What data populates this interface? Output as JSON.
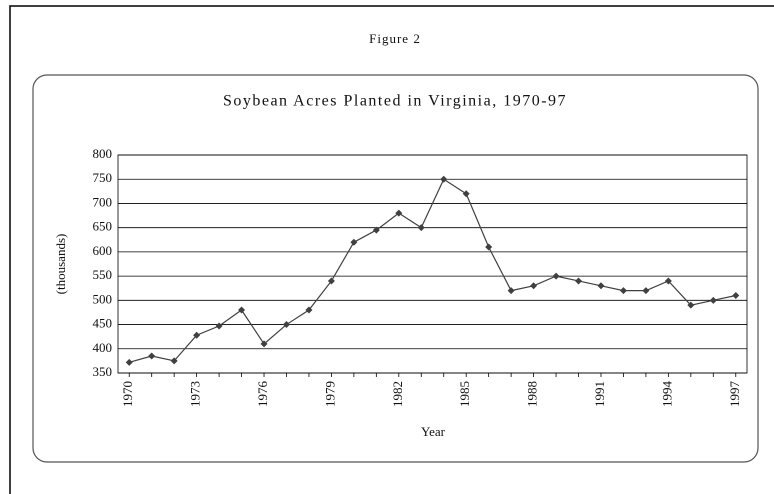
{
  "figure_label": "Figure 2",
  "chart_data": {
    "type": "line",
    "title": "Soybean Acres Planted in Virginia, 1970-97",
    "x_label": "Year",
    "y_label": "(thousands)",
    "x": [
      1970,
      1971,
      1972,
      1973,
      1974,
      1975,
      1976,
      1977,
      1978,
      1979,
      1980,
      1981,
      1982,
      1983,
      1984,
      1985,
      1986,
      1987,
      1988,
      1989,
      1990,
      1991,
      1992,
      1993,
      1994,
      1995,
      1996,
      1997
    ],
    "series": [
      {
        "color": "#404040",
        "values": [
          372,
          385,
          375,
          428,
          447,
          480,
          410,
          450,
          480,
          540,
          620,
          645,
          680,
          650,
          750,
          720,
          610,
          520,
          530,
          550,
          540,
          530,
          520,
          520,
          540,
          490,
          500,
          510
        ]
      }
    ],
    "xlim": [
      1969.5,
      1997.5
    ],
    "xticks": [
      1970,
      1973,
      1976,
      1979,
      1982,
      1985,
      1988,
      1991,
      1994,
      1997
    ],
    "ylim": [
      350,
      800
    ],
    "yticks": [
      350,
      400,
      450,
      500,
      550,
      600,
      650,
      700,
      750,
      800
    ],
    "grid": true
  }
}
